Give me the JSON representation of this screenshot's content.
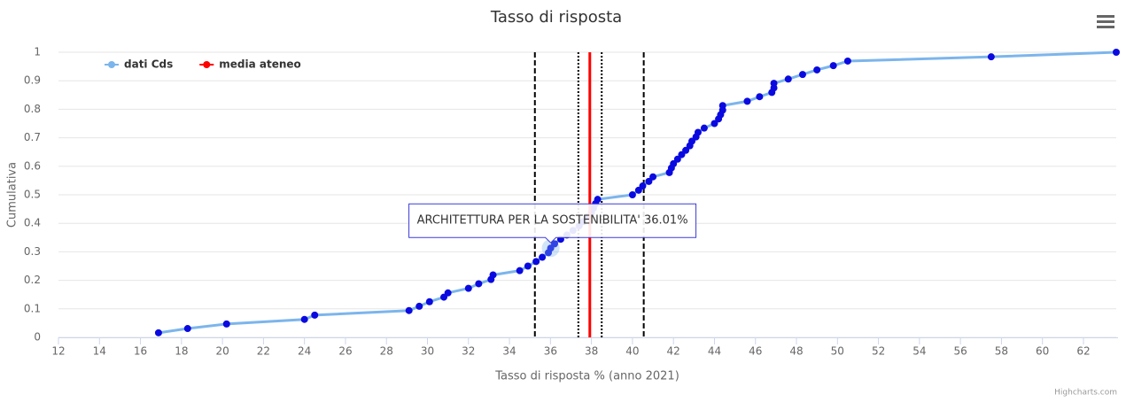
{
  "chart_data": {
    "type": "line",
    "title": "Tasso di risposta",
    "xlabel": "Tasso di risposta % (anno 2021)",
    "ylabel": "Cumulativa",
    "credits": "Highcharts.com",
    "xlim": [
      12,
      63.6
    ],
    "ylim": [
      0,
      1
    ],
    "xticks": [
      12,
      14,
      16,
      18,
      20,
      22,
      24,
      26,
      28,
      30,
      32,
      34,
      36,
      38,
      40,
      42,
      44,
      46,
      48,
      50,
      52,
      54,
      56,
      58,
      60,
      62
    ],
    "yticks": [
      0,
      0.1,
      0.2,
      0.3,
      0.4,
      0.5,
      0.6,
      0.7,
      0.8,
      0.9,
      1
    ],
    "grid": true,
    "legend": "top-left",
    "marker_color": "#0a0ae0",
    "series": [
      {
        "name": "dati Cds",
        "color": "#7cb5ec",
        "x": [
          16.88,
          18.3,
          20.2,
          24.0,
          24.5,
          29.1,
          29.6,
          30.1,
          30.8,
          31.0,
          32.0,
          32.5,
          33.1,
          33.2,
          34.5,
          34.9,
          35.3,
          35.6,
          35.9,
          36.01,
          36.2,
          36.5,
          36.8,
          37.1,
          37.4,
          37.6,
          37.8,
          38.0,
          38.1,
          38.2,
          38.3,
          40.0,
          40.3,
          40.5,
          40.8,
          41.0,
          41.8,
          41.9,
          42.0,
          42.2,
          42.4,
          42.6,
          42.8,
          42.9,
          43.1,
          43.2,
          43.5,
          44.0,
          44.2,
          44.3,
          44.4,
          44.4,
          45.6,
          46.2,
          46.8,
          46.9,
          46.9,
          47.6,
          48.3,
          49.0,
          49.8,
          50.5,
          57.5,
          63.6
        ],
        "values": [
          0.016,
          0.031,
          0.047,
          0.063,
          0.078,
          0.094,
          0.109,
          0.125,
          0.141,
          0.156,
          0.172,
          0.188,
          0.203,
          0.219,
          0.234,
          0.25,
          0.266,
          0.281,
          0.297,
          0.313,
          0.328,
          0.344,
          0.359,
          0.375,
          0.391,
          0.406,
          0.422,
          0.438,
          0.453,
          0.469,
          0.484,
          0.5,
          0.516,
          0.531,
          0.547,
          0.563,
          0.578,
          0.594,
          0.609,
          0.625,
          0.641,
          0.656,
          0.672,
          0.688,
          0.703,
          0.719,
          0.734,
          0.75,
          0.766,
          0.781,
          0.797,
          0.813,
          0.828,
          0.844,
          0.859,
          0.875,
          0.891,
          0.906,
          0.922,
          0.938,
          0.953,
          0.969,
          0.984,
          1
        ]
      },
      {
        "name": "media ateneo",
        "color": "#ff0000",
        "x": [
          37.92,
          37.92
        ],
        "values": [
          0,
          1
        ]
      }
    ],
    "plot_lines": [
      {
        "value": 35.24,
        "style": "dashed"
      },
      {
        "value": 37.36,
        "style": "dotted"
      },
      {
        "value": 38.5,
        "style": "dotted"
      },
      {
        "value": 40.55,
        "style": "dashed"
      }
    ],
    "tooltip": {
      "series": 0,
      "point": 19,
      "text": "ARCHITETTURA PER LA SOSTENIBILITA' 36.01%"
    }
  }
}
